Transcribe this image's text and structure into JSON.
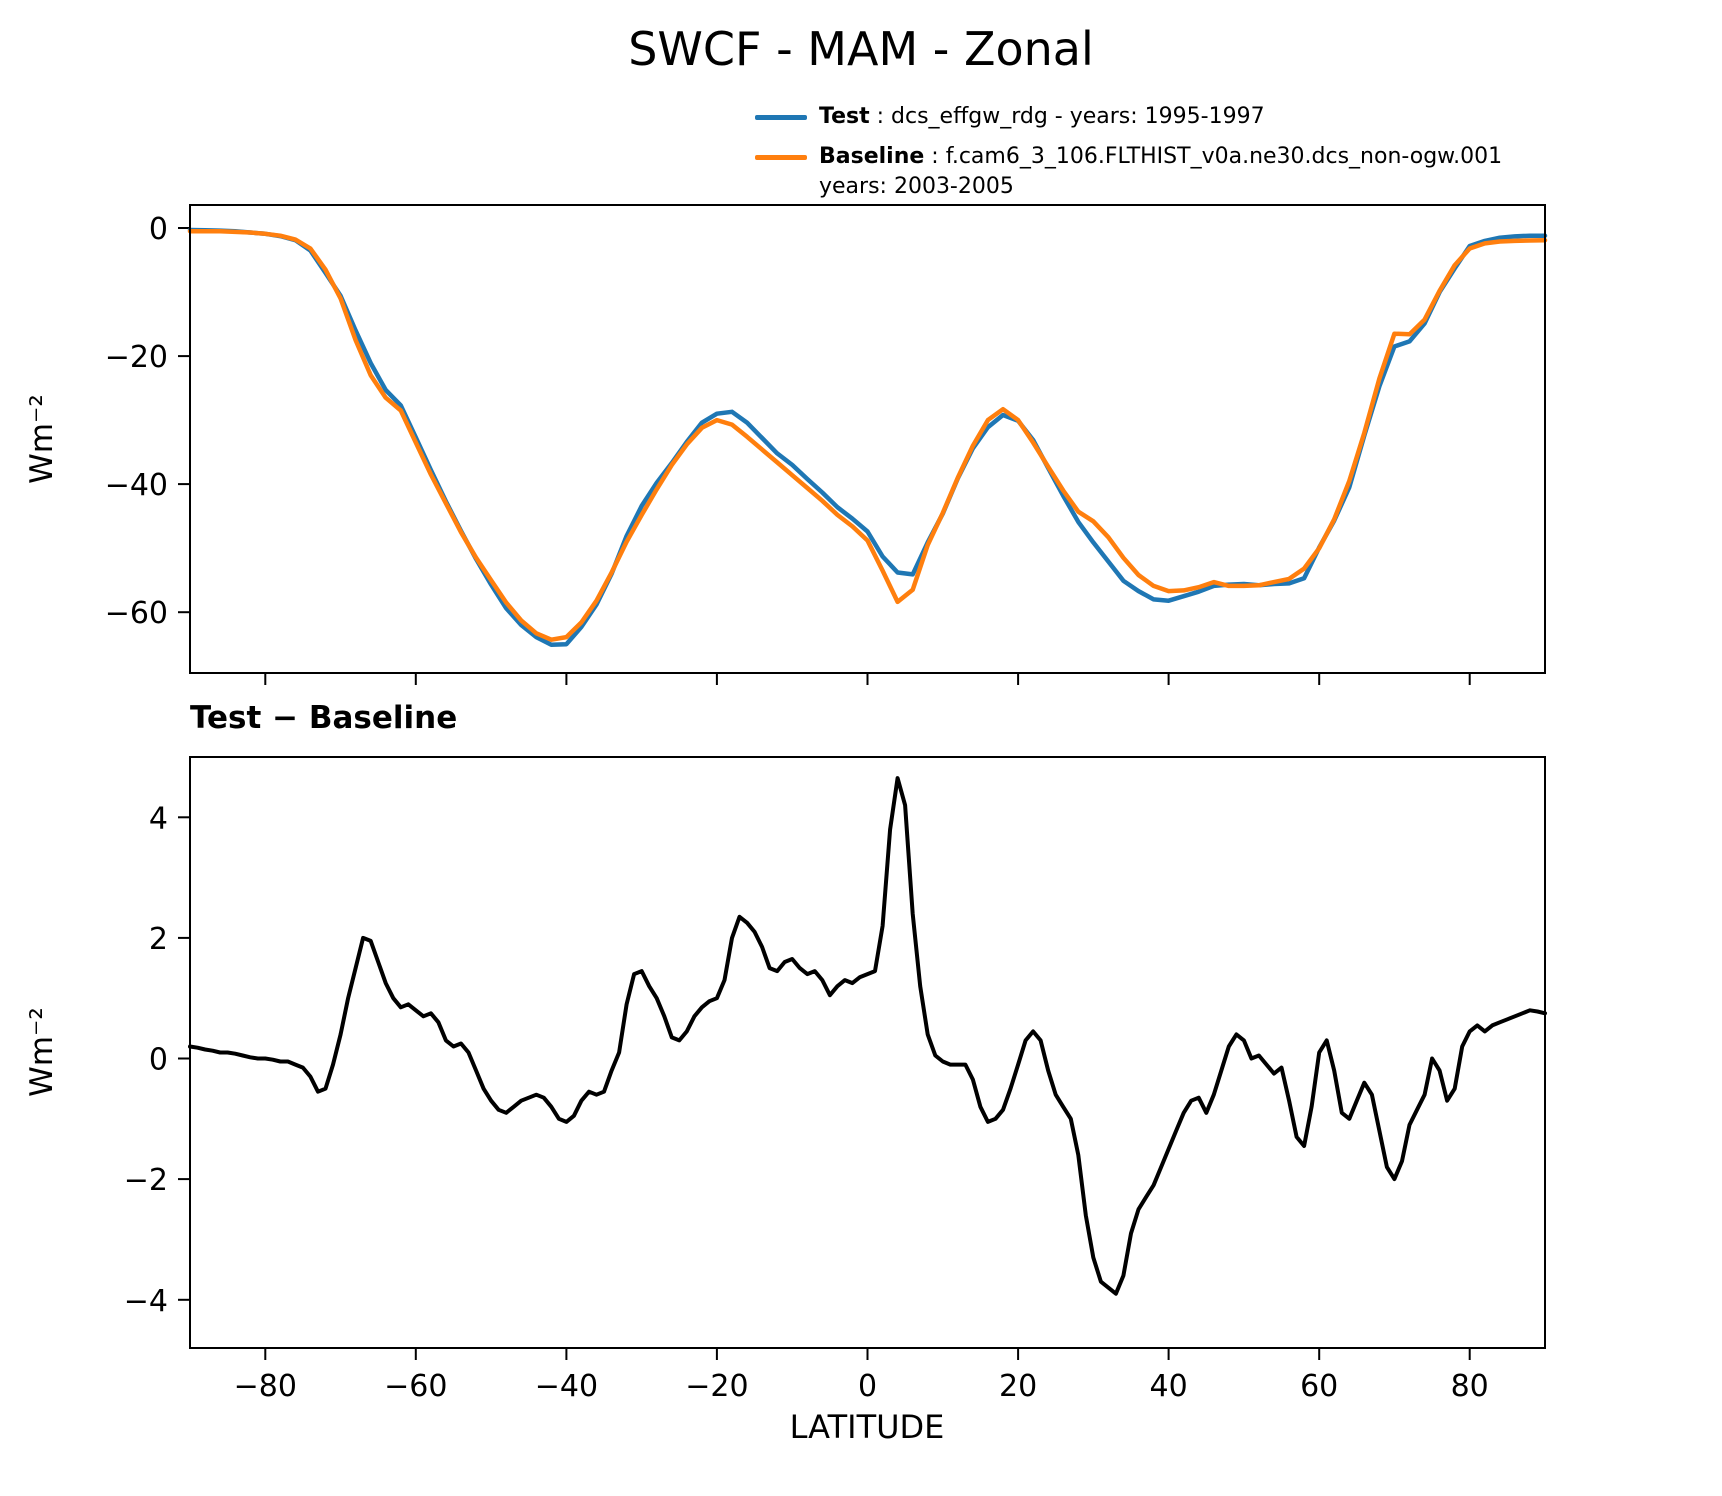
{
  "title": "SWCF - MAM - Zonal",
  "legend": {
    "items": [
      {
        "name": "Test",
        "desc": " : dcs_effgw_rdg - years: 1995-1997",
        "desc2": "",
        "color": "#1f77b4"
      },
      {
        "name": "Baseline",
        "desc": " : f.cam6_3_106.FLTHIST_v0a.ne30.dcs_non-ogw.001",
        "desc2": "years: 2003-2005",
        "color": "#ff7f0e"
      }
    ]
  },
  "chart_data": [
    {
      "type": "line",
      "title": "",
      "xlabel": "",
      "ylabel": "Wm⁻²",
      "xlim": [
        -90,
        90
      ],
      "ylim": [
        -69.5,
        3.6
      ],
      "xticks": [
        -80,
        -60,
        -40,
        -20,
        0,
        20,
        40,
        60,
        80
      ],
      "yticks": [
        0,
        -20,
        -40,
        -60
      ],
      "show_xticklabels": false,
      "grid": false,
      "legend_position": "above plot, right",
      "x": [
        -90,
        -88,
        -86,
        -84,
        -82,
        -80,
        -78,
        -76,
        -74,
        -72,
        -70,
        -68,
        -66,
        -64,
        -62,
        -60,
        -58,
        -56,
        -54,
        -52,
        -50,
        -48,
        -46,
        -44,
        -42,
        -40,
        -38,
        -36,
        -34,
        -32,
        -30,
        -28,
        -26,
        -24,
        -22,
        -20,
        -18,
        -16,
        -14,
        -12,
        -10,
        -8,
        -6,
        -4,
        -2,
        0,
        2,
        4,
        6,
        8,
        10,
        12,
        14,
        16,
        18,
        20,
        22,
        24,
        26,
        28,
        30,
        32,
        34,
        36,
        38,
        40,
        42,
        44,
        46,
        48,
        50,
        52,
        54,
        56,
        58,
        60,
        62,
        64,
        66,
        68,
        70,
        72,
        74,
        76,
        78,
        80,
        82,
        84,
        86,
        88,
        90
      ],
      "series": [
        {
          "name": "Test",
          "label": "Test : dcs_effgw_rdg - years: 1995-1997",
          "color": "#1f77b4",
          "values": [
            -0.3,
            -0.35,
            -0.4,
            -0.5,
            -0.7,
            -0.9,
            -1.25,
            -1.9,
            -3.5,
            -7.0,
            -10.6,
            -16.0,
            -21.1,
            -25.3,
            -27.7,
            -32.7,
            -37.8,
            -42.7,
            -47.3,
            -51.7,
            -55.7,
            -59.4,
            -62.0,
            -63.9,
            -65.1,
            -65.0,
            -62.3,
            -58.8,
            -54.0,
            -48.1,
            -43.4,
            -39.8,
            -36.7,
            -33.4,
            -30.4,
            -29.0,
            -28.7,
            -30.4,
            -32.8,
            -35.2,
            -37.0,
            -39.2,
            -41.3,
            -43.6,
            -45.4,
            -47.4,
            -51.3,
            -53.8,
            -54.1,
            -49.1,
            -44.6,
            -39.1,
            -34.4,
            -31.1,
            -29.2,
            -30.1,
            -33.1,
            -37.5,
            -41.8,
            -45.9,
            -49.1,
            -52.1,
            -55.1,
            -56.7,
            -58.0,
            -58.2,
            -57.5,
            -56.8,
            -55.9,
            -55.7,
            -55.6,
            -55.8,
            -55.6,
            -55.5,
            -54.7,
            -49.9,
            -45.7,
            -40.5,
            -32.4,
            -24.7,
            -18.5,
            -17.7,
            -14.9,
            -10.0,
            -6.3,
            -2.8,
            -2.0,
            -1.5,
            -1.3,
            -1.2,
            -1.2
          ]
        },
        {
          "name": "Baseline",
          "label": "Baseline : f.cam6_3_106.FLTHIST_v0a.ne30.dcs_non-ogw.001 years: 2003-2005",
          "color": "#ff7f0e",
          "values": [
            -0.5,
            -0.5,
            -0.5,
            -0.6,
            -0.7,
            -0.9,
            -1.2,
            -1.8,
            -3.2,
            -6.5,
            -11.0,
            -17.5,
            -23.0,
            -26.5,
            -28.5,
            -33.5,
            -38.5,
            -43.0,
            -47.5,
            -51.5,
            -55.0,
            -58.5,
            -61.3,
            -63.3,
            -64.3,
            -63.9,
            -61.6,
            -58.2,
            -53.8,
            -49.0,
            -44.8,
            -40.8,
            -37.0,
            -33.8,
            -31.2,
            -30.0,
            -30.7,
            -32.6,
            -34.6,
            -36.6,
            -38.6,
            -40.6,
            -42.6,
            -44.8,
            -46.6,
            -48.8,
            -53.5,
            -58.4,
            -56.5,
            -49.5,
            -44.5,
            -39.0,
            -34.0,
            -30.0,
            -28.3,
            -30.0,
            -33.5,
            -37.3,
            -41.0,
            -44.3,
            -45.8,
            -48.3,
            -51.5,
            -54.2,
            -55.9,
            -56.7,
            -56.6,
            -56.1,
            -55.3,
            -55.9,
            -55.9,
            -55.8,
            -55.3,
            -54.8,
            -53.2,
            -50.0,
            -45.5,
            -39.5,
            -32.0,
            -23.5,
            -16.5,
            -16.6,
            -14.3,
            -9.8,
            -5.8,
            -3.2,
            -2.4,
            -2.1,
            -2.0,
            -1.95,
            -1.9
          ]
        }
      ]
    },
    {
      "type": "line",
      "title": "Test − Baseline",
      "xlabel": "LATITUDE",
      "ylabel": "Wm⁻²",
      "xlim": [
        -90,
        90
      ],
      "ylim": [
        -4.8,
        5.0
      ],
      "xticks": [
        -80,
        -60,
        -40,
        -20,
        0,
        20,
        40,
        60,
        80
      ],
      "yticks": [
        -4,
        -2,
        0,
        2,
        4
      ],
      "show_xticklabels": true,
      "grid": false,
      "x": [
        -90,
        -89,
        -88,
        -87,
        -86,
        -85,
        -84,
        -83,
        -82,
        -81,
        -80,
        -79,
        -78,
        -77,
        -76,
        -75,
        -74,
        -73,
        -72,
        -71,
        -70,
        -69,
        -68,
        -67,
        -66,
        -65,
        -64,
        -63,
        -62,
        -61,
        -60,
        -59,
        -58,
        -57,
        -56,
        -55,
        -54,
        -53,
        -52,
        -51,
        -50,
        -49,
        -48,
        -47,
        -46,
        -45,
        -44,
        -43,
        -42,
        -41,
        -40,
        -39,
        -38,
        -37,
        -36,
        -35,
        -34,
        -33,
        -32,
        -31,
        -30,
        -29,
        -28,
        -27,
        -26,
        -25,
        -24,
        -23,
        -22,
        -21,
        -20,
        -19,
        -18,
        -17,
        -16,
        -15,
        -14,
        -13,
        -12,
        -11,
        -10,
        -9,
        -8,
        -7,
        -6,
        -5,
        -4,
        -3,
        -2,
        -1,
        0,
        1,
        2,
        3,
        4,
        5,
        6,
        7,
        8,
        9,
        10,
        11,
        12,
        13,
        14,
        15,
        16,
        17,
        18,
        19,
        20,
        21,
        22,
        23,
        24,
        25,
        26,
        27,
        28,
        29,
        30,
        31,
        32,
        33,
        34,
        35,
        36,
        37,
        38,
        39,
        40,
        41,
        42,
        43,
        44,
        45,
        46,
        47,
        48,
        49,
        50,
        51,
        52,
        53,
        54,
        55,
        56,
        57,
        58,
        59,
        60,
        61,
        62,
        63,
        64,
        65,
        66,
        67,
        68,
        69,
        70,
        71,
        72,
        73,
        74,
        75,
        76,
        77,
        78,
        79,
        80,
        81,
        82,
        83,
        84,
        85,
        86,
        87,
        88,
        89,
        90
      ],
      "series": [
        {
          "name": "Test minus Baseline",
          "color": "#000000",
          "values": [
            0.2,
            0.18,
            0.15,
            0.13,
            0.1,
            0.1,
            0.08,
            0.05,
            0.02,
            0.0,
            0.0,
            -0.02,
            -0.05,
            -0.05,
            -0.1,
            -0.15,
            -0.3,
            -0.55,
            -0.5,
            -0.1,
            0.4,
            1.0,
            1.5,
            2.0,
            1.95,
            1.6,
            1.25,
            1.0,
            0.85,
            0.9,
            0.8,
            0.7,
            0.75,
            0.6,
            0.3,
            0.2,
            0.25,
            0.1,
            -0.2,
            -0.5,
            -0.7,
            -0.85,
            -0.9,
            -0.8,
            -0.7,
            -0.65,
            -0.6,
            -0.65,
            -0.8,
            -1.0,
            -1.05,
            -0.95,
            -0.7,
            -0.55,
            -0.6,
            -0.55,
            -0.2,
            0.1,
            0.9,
            1.4,
            1.45,
            1.2,
            1.0,
            0.7,
            0.35,
            0.3,
            0.45,
            0.7,
            0.85,
            0.95,
            1.0,
            1.3,
            2.0,
            2.35,
            2.25,
            2.1,
            1.85,
            1.5,
            1.45,
            1.6,
            1.65,
            1.5,
            1.4,
            1.45,
            1.3,
            1.05,
            1.2,
            1.3,
            1.25,
            1.35,
            1.4,
            1.45,
            2.2,
            3.8,
            4.65,
            4.2,
            2.4,
            1.2,
            0.4,
            0.05,
            -0.05,
            -0.1,
            -0.1,
            -0.1,
            -0.35,
            -0.8,
            -1.05,
            -1.0,
            -0.85,
            -0.5,
            -0.1,
            0.3,
            0.45,
            0.3,
            -0.2,
            -0.6,
            -0.8,
            -1.0,
            -1.6,
            -2.6,
            -3.3,
            -3.7,
            -3.8,
            -3.9,
            -3.6,
            -2.9,
            -2.5,
            -2.3,
            -2.1,
            -1.8,
            -1.5,
            -1.2,
            -0.9,
            -0.7,
            -0.65,
            -0.9,
            -0.6,
            -0.2,
            0.2,
            0.4,
            0.3,
            0.0,
            0.05,
            -0.1,
            -0.25,
            -0.15,
            -0.7,
            -1.3,
            -1.45,
            -0.8,
            0.1,
            0.3,
            -0.2,
            -0.9,
            -1.0,
            -0.7,
            -0.4,
            -0.6,
            -1.2,
            -1.8,
            -2.0,
            -1.7,
            -1.1,
            -0.85,
            -0.6,
            0.0,
            -0.2,
            -0.7,
            -0.5,
            0.2,
            0.45,
            0.55,
            0.45,
            0.55,
            0.6,
            0.65,
            0.7,
            0.75,
            0.8,
            0.78,
            0.75
          ]
        }
      ]
    }
  ]
}
